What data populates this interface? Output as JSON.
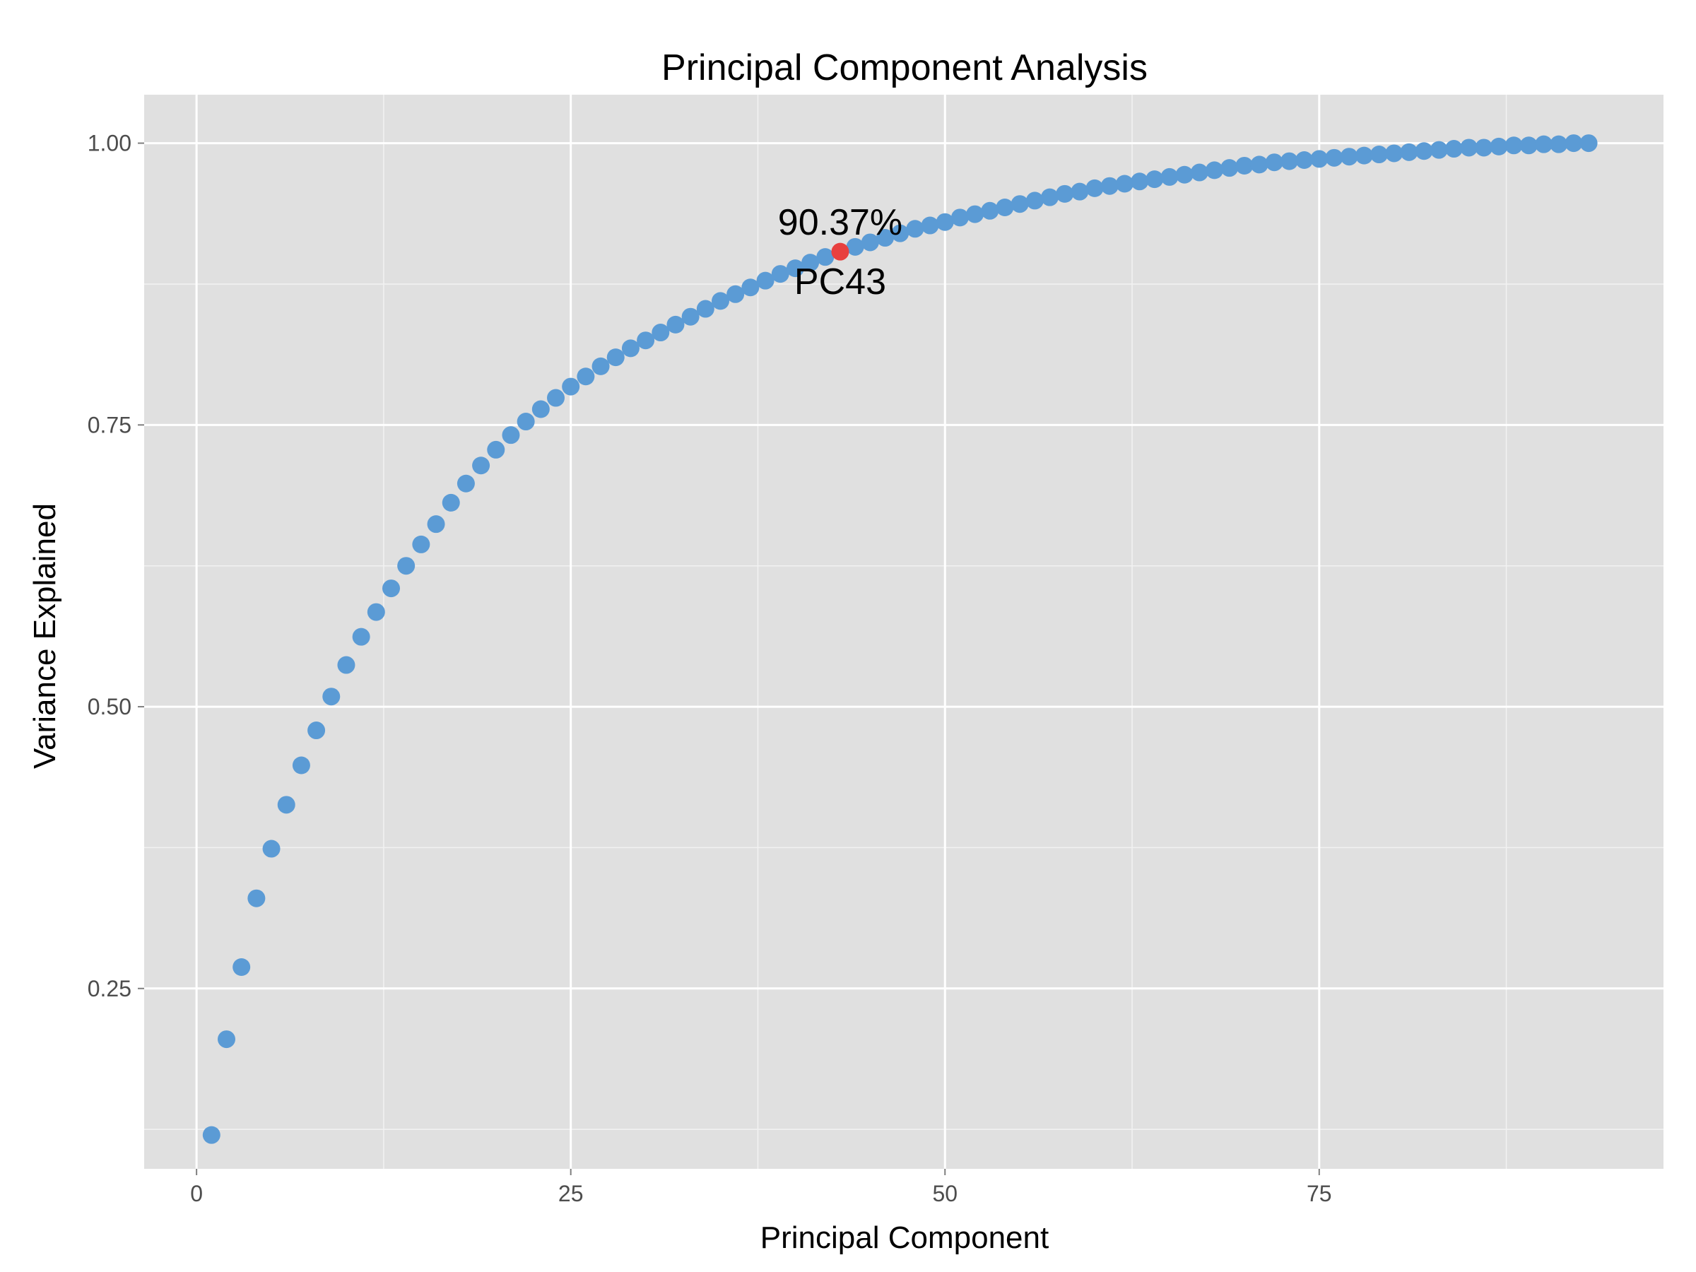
{
  "chart_data": {
    "type": "scatter",
    "title": "Principal Component Analysis",
    "xlabel": "Principal Component",
    "ylabel": "Variance Explained",
    "xlim": [
      -3.5,
      98
    ],
    "ylim": [
      0.09,
      1.043
    ],
    "x_ticks": [
      0,
      25,
      50,
      75
    ],
    "x_tick_labels": [
      "0",
      "25",
      "50",
      "75"
    ],
    "y_ticks": [
      0.25,
      0.5,
      0.75,
      1.0
    ],
    "y_tick_labels": [
      "0.25",
      "0.50",
      "0.75",
      "1.00"
    ],
    "grid": true,
    "series": [
      {
        "color": "#5b9bd5",
        "x": [
          1,
          2,
          3,
          4,
          5,
          6,
          7,
          8,
          9,
          10,
          11,
          12,
          13,
          14,
          15,
          16,
          17,
          18,
          19,
          20,
          21,
          22,
          23,
          24,
          25,
          26,
          27,
          28,
          29,
          30,
          31,
          32,
          33,
          34,
          35,
          36,
          37,
          38,
          39,
          40,
          41,
          42,
          43,
          44,
          45,
          46,
          47,
          48,
          49,
          50,
          51,
          52,
          53,
          54,
          55,
          56,
          57,
          58,
          59,
          60,
          61,
          62,
          63,
          64,
          65,
          66,
          67,
          68,
          69,
          70,
          71,
          72,
          73,
          74,
          75,
          76,
          77,
          78,
          79,
          80,
          81,
          82,
          83,
          84,
          85,
          86,
          87,
          88,
          89,
          90,
          91,
          92,
          93
        ],
        "y": [
          0.12,
          0.205,
          0.269,
          0.33,
          0.374,
          0.413,
          0.448,
          0.479,
          0.509,
          0.537,
          0.562,
          0.584,
          0.605,
          0.625,
          0.644,
          0.662,
          0.681,
          0.698,
          0.714,
          0.728,
          0.741,
          0.753,
          0.764,
          0.774,
          0.784,
          0.793,
          0.802,
          0.81,
          0.818,
          0.825,
          0.832,
          0.839,
          0.846,
          0.853,
          0.86,
          0.866,
          0.872,
          0.878,
          0.884,
          0.889,
          0.894,
          0.899,
          0.9037,
          0.908,
          0.912,
          0.916,
          0.92,
          0.924,
          0.927,
          0.93,
          0.934,
          0.937,
          0.94,
          0.943,
          0.946,
          0.949,
          0.952,
          0.955,
          0.957,
          0.96,
          0.962,
          0.964,
          0.966,
          0.968,
          0.97,
          0.972,
          0.974,
          0.976,
          0.978,
          0.98,
          0.981,
          0.983,
          0.984,
          0.985,
          0.986,
          0.987,
          0.988,
          0.989,
          0.99,
          0.991,
          0.992,
          0.993,
          0.994,
          0.995,
          0.996,
          0.996,
          0.997,
          0.998,
          0.998,
          0.999,
          0.999,
          1.0,
          1.0
        ]
      }
    ],
    "highlight": {
      "x": 43,
      "y": 0.9037,
      "color": "#e8403f",
      "label_top": "90.37%",
      "label_bottom": "PC43"
    },
    "colors": {
      "panel_bg": "#e0e0e0",
      "grid_major": "#ffffff",
      "grid_minor": "#f2f2f2",
      "point": "#5b9bd5",
      "highlight": "#e8403f"
    }
  }
}
